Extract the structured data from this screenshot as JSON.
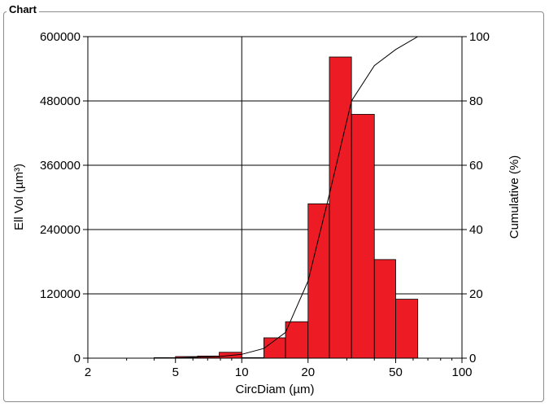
{
  "group_title": "Chart",
  "chart_data": {
    "type": "bar",
    "xlabel": "CircDiam (µm)",
    "ylabel": "Ell Vol (µm³)",
    "y2label": "Cumulative (%)",
    "x_scale": "log",
    "xlim": [
      2,
      100
    ],
    "ylim": [
      0,
      600000
    ],
    "y2lim": [
      0,
      100
    ],
    "x_ticks": [
      2,
      5,
      10,
      20,
      50,
      100
    ],
    "y_ticks": [
      0,
      120000,
      240000,
      360000,
      480000,
      600000
    ],
    "y2_ticks": [
      0,
      20,
      40,
      60,
      80,
      100
    ],
    "grid": "major",
    "bar_color": "#ed1c24",
    "bins": [
      {
        "x0": 2.0,
        "x1": 2.5,
        "value": 0
      },
      {
        "x0": 2.5,
        "x1": 3.2,
        "value": 0
      },
      {
        "x0": 3.2,
        "x1": 4.0,
        "value": 0
      },
      {
        "x0": 4.0,
        "x1": 5.0,
        "value": 1000
      },
      {
        "x0": 5.0,
        "x1": 6.3,
        "value": 3000
      },
      {
        "x0": 6.3,
        "x1": 7.9,
        "value": 4000
      },
      {
        "x0": 7.9,
        "x1": 10.0,
        "value": 11000
      },
      {
        "x0": 10.0,
        "x1": 12.6,
        "value": 1000
      },
      {
        "x0": 12.6,
        "x1": 15.8,
        "value": 38000
      },
      {
        "x0": 15.8,
        "x1": 20.0,
        "value": 68000
      },
      {
        "x0": 20.0,
        "x1": 25.0,
        "value": 288000
      },
      {
        "x0": 25.0,
        "x1": 31.5,
        "value": 562000
      },
      {
        "x0": 31.5,
        "x1": 40.0,
        "value": 455000
      },
      {
        "x0": 40.0,
        "x1": 50.0,
        "value": 184000
      },
      {
        "x0": 50.0,
        "x1": 63.0,
        "value": 110000
      },
      {
        "x0": 63.0,
        "x1": 79.0,
        "value": 0
      },
      {
        "x0": 79.0,
        "x1": 100.0,
        "value": 0
      }
    ],
    "cumulative": {
      "x": [
        2.5,
        3.2,
        4.0,
        5.0,
        6.3,
        7.9,
        10.0,
        12.6,
        15.8,
        20.0,
        25.0,
        31.5,
        40.0,
        50.0,
        63.0,
        79.0
      ],
      "y": [
        0,
        0,
        0,
        0.1,
        0.3,
        0.5,
        1.2,
        3.0,
        8.0,
        24.0,
        51.0,
        80.0,
        91.0,
        96.0,
        100.0,
        100.0
      ]
    }
  }
}
